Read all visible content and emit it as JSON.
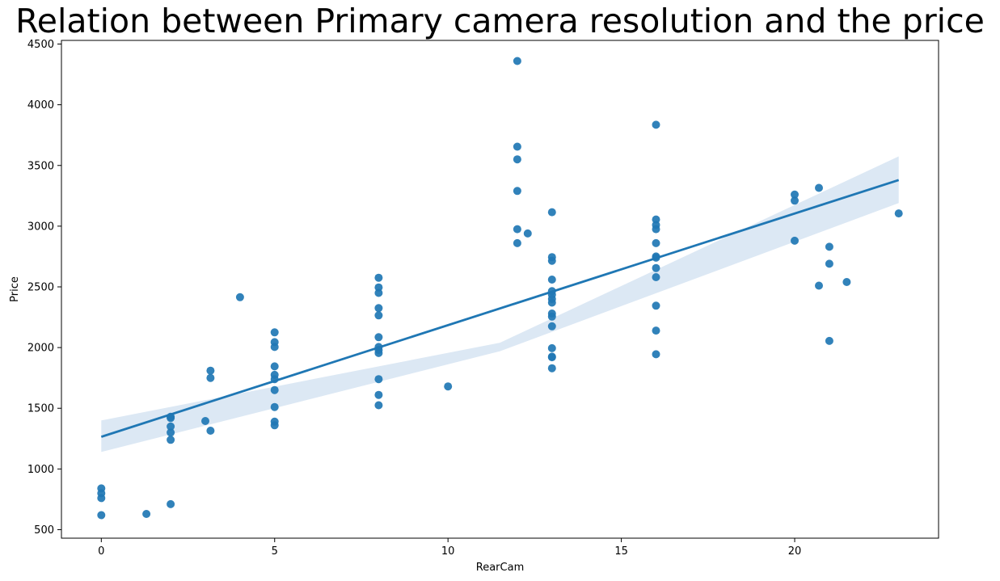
{
  "chart_data": {
    "type": "scatter",
    "title": "Relation between Primary camera resolution and the price",
    "xlabel": "RearCam",
    "ylabel": "Price",
    "xlim": [
      -1.15,
      24.15
    ],
    "ylim": [
      430,
      4530
    ],
    "xticks": [
      0,
      5,
      10,
      15,
      20
    ],
    "yticks": [
      500,
      1000,
      1500,
      2000,
      2500,
      3000,
      3500,
      4000,
      4500
    ],
    "grid": false,
    "point_color": "#1f77b4",
    "band_color": "#dce8f4",
    "regression": {
      "x_start": 0,
      "y_start": 1265,
      "x_end": 23,
      "y_end": 3380,
      "ci_lower_start": 1140,
      "ci_upper_start": 1400,
      "ci_lower_mid": 1970,
      "ci_upper_mid": 2040,
      "ci_lower_end": 3190,
      "ci_upper_end": 3575
    },
    "points": [
      {
        "x": 0,
        "y": 840
      },
      {
        "x": 0,
        "y": 800
      },
      {
        "x": 0,
        "y": 760
      },
      {
        "x": 0,
        "y": 620
      },
      {
        "x": 1.3,
        "y": 630
      },
      {
        "x": 2,
        "y": 1430
      },
      {
        "x": 2,
        "y": 1420
      },
      {
        "x": 2,
        "y": 1350
      },
      {
        "x": 2,
        "y": 1300
      },
      {
        "x": 2,
        "y": 1240
      },
      {
        "x": 2,
        "y": 710
      },
      {
        "x": 3,
        "y": 1395
      },
      {
        "x": 3.15,
        "y": 1810
      },
      {
        "x": 3.15,
        "y": 1750
      },
      {
        "x": 3.15,
        "y": 1315
      },
      {
        "x": 4,
        "y": 2415
      },
      {
        "x": 5,
        "y": 2125
      },
      {
        "x": 5,
        "y": 2045
      },
      {
        "x": 5,
        "y": 2005
      },
      {
        "x": 5,
        "y": 1845
      },
      {
        "x": 5,
        "y": 1775
      },
      {
        "x": 5,
        "y": 1740
      },
      {
        "x": 5,
        "y": 1650
      },
      {
        "x": 5,
        "y": 1510
      },
      {
        "x": 5,
        "y": 1390
      },
      {
        "x": 5,
        "y": 1360
      },
      {
        "x": 8,
        "y": 2575
      },
      {
        "x": 8,
        "y": 2495
      },
      {
        "x": 8,
        "y": 2450
      },
      {
        "x": 8,
        "y": 2325
      },
      {
        "x": 8,
        "y": 2265
      },
      {
        "x": 8,
        "y": 2085
      },
      {
        "x": 8,
        "y": 2005
      },
      {
        "x": 8,
        "y": 1980
      },
      {
        "x": 8,
        "y": 1955
      },
      {
        "x": 8,
        "y": 1740
      },
      {
        "x": 8,
        "y": 1610
      },
      {
        "x": 8,
        "y": 1525
      },
      {
        "x": 10,
        "y": 1680
      },
      {
        "x": 12,
        "y": 4360
      },
      {
        "x": 12,
        "y": 3655
      },
      {
        "x": 12,
        "y": 3550
      },
      {
        "x": 12,
        "y": 3290
      },
      {
        "x": 12,
        "y": 2975
      },
      {
        "x": 12,
        "y": 2860
      },
      {
        "x": 12.3,
        "y": 2940
      },
      {
        "x": 13,
        "y": 3115
      },
      {
        "x": 13,
        "y": 2745
      },
      {
        "x": 13,
        "y": 2715
      },
      {
        "x": 13,
        "y": 2560
      },
      {
        "x": 13,
        "y": 2465
      },
      {
        "x": 13,
        "y": 2435
      },
      {
        "x": 13,
        "y": 2400
      },
      {
        "x": 13,
        "y": 2370
      },
      {
        "x": 13,
        "y": 2280
      },
      {
        "x": 13,
        "y": 2255
      },
      {
        "x": 13,
        "y": 2175
      },
      {
        "x": 13,
        "y": 1995
      },
      {
        "x": 13,
        "y": 1925
      },
      {
        "x": 13,
        "y": 1920
      },
      {
        "x": 13,
        "y": 1830
      },
      {
        "x": 16,
        "y": 3835
      },
      {
        "x": 16,
        "y": 3055
      },
      {
        "x": 16,
        "y": 3010
      },
      {
        "x": 16,
        "y": 2975
      },
      {
        "x": 16,
        "y": 2860
      },
      {
        "x": 16,
        "y": 2750
      },
      {
        "x": 16,
        "y": 2740
      },
      {
        "x": 16,
        "y": 2655
      },
      {
        "x": 16,
        "y": 2580
      },
      {
        "x": 16,
        "y": 2345
      },
      {
        "x": 16,
        "y": 2140
      },
      {
        "x": 16,
        "y": 1945
      },
      {
        "x": 20,
        "y": 3260
      },
      {
        "x": 20,
        "y": 3210
      },
      {
        "x": 20,
        "y": 2880
      },
      {
        "x": 20.7,
        "y": 3315
      },
      {
        "x": 20.7,
        "y": 2510
      },
      {
        "x": 21,
        "y": 2830
      },
      {
        "x": 21,
        "y": 2690
      },
      {
        "x": 21,
        "y": 2055
      },
      {
        "x": 21.5,
        "y": 2540
      },
      {
        "x": 23,
        "y": 3105
      }
    ]
  }
}
